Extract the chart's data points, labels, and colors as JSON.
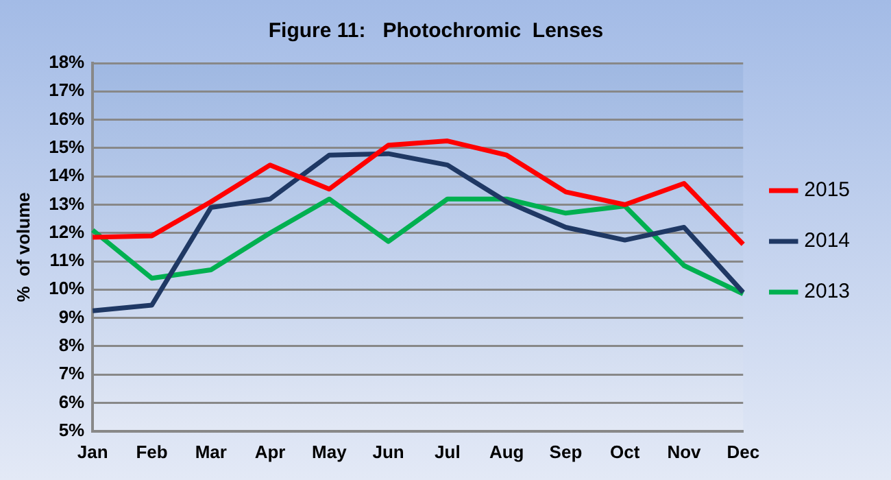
{
  "chart_data": {
    "type": "line",
    "title": "Figure 11:   Photochromic  Lenses",
    "ylabel": "%  of volume",
    "categories": [
      "Jan",
      "Feb",
      "Mar",
      "Apr",
      "May",
      "Jun",
      "Jul",
      "Aug",
      "Sep",
      "Oct",
      "Nov",
      "Dec"
    ],
    "series": [
      {
        "name": "2015",
        "color": "#ff0000",
        "values": [
          11.85,
          11.9,
          13.1,
          14.4,
          13.55,
          15.1,
          15.25,
          14.75,
          13.45,
          13.0,
          13.75,
          11.6
        ]
      },
      {
        "name": "2014",
        "color": "#1f3864",
        "values": [
          9.25,
          9.45,
          12.9,
          13.2,
          14.75,
          14.8,
          14.4,
          13.1,
          12.2,
          11.75,
          12.2,
          9.9
        ]
      },
      {
        "name": "2013",
        "color": "#00b050",
        "values": [
          12.1,
          10.4,
          10.7,
          12.0,
          13.2,
          11.7,
          13.2,
          13.2,
          12.7,
          12.95,
          10.85,
          9.85
        ]
      }
    ],
    "ylim": [
      5,
      18
    ],
    "yticks": [
      {
        "value": 5,
        "label": "5%"
      },
      {
        "value": 6,
        "label": "6%"
      },
      {
        "value": 7,
        "label": "7%"
      },
      {
        "value": 8,
        "label": "8%"
      },
      {
        "value": 9,
        "label": "9%"
      },
      {
        "value": 10,
        "label": "10%"
      },
      {
        "value": 11,
        "label": "11%"
      },
      {
        "value": 12,
        "label": "12%"
      },
      {
        "value": 13,
        "label": "13%"
      },
      {
        "value": 14,
        "label": "14%"
      },
      {
        "value": 15,
        "label": "15%"
      },
      {
        "value": 16,
        "label": "16%"
      },
      {
        "value": 17,
        "label": "17%"
      },
      {
        "value": 18,
        "label": "18%"
      }
    ],
    "grid": "y",
    "legend": "right",
    "marker": "none",
    "line_style": "solid"
  }
}
